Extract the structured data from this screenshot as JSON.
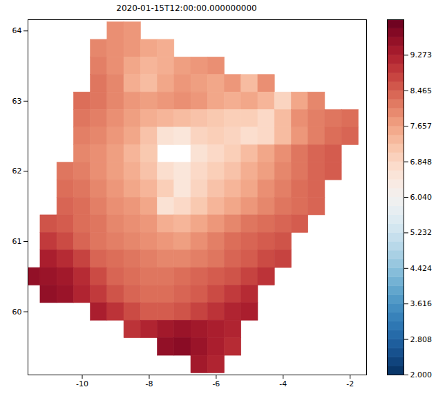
{
  "chart_data": {
    "type": "heatmap",
    "title": "2020-01-15T12:00:00.000000000",
    "x": [
      -11.5,
      -11.0,
      -10.5,
      -10.0,
      -9.5,
      -9.0,
      -8.5,
      -8.0,
      -7.5,
      -7.0,
      -6.5,
      -6.0,
      -5.5,
      -5.0,
      -4.5,
      -4.0,
      -3.5,
      -3.0,
      -2.5,
      -2.0,
      -1.5
    ],
    "y": [
      64.0,
      63.75,
      63.5,
      63.25,
      63.0,
      62.75,
      62.5,
      62.25,
      62.0,
      61.75,
      61.5,
      61.25,
      61.0,
      60.75,
      60.5,
      60.25,
      60.0,
      59.75,
      59.5,
      59.25
    ],
    "cells": [
      [
        null,
        null,
        null,
        null,
        null,
        7.9,
        7.8,
        null,
        null,
        null,
        null,
        null,
        null,
        null,
        null,
        null,
        null,
        null,
        null,
        null,
        null
      ],
      [
        null,
        null,
        null,
        null,
        8.0,
        7.9,
        7.8,
        7.6,
        7.5,
        null,
        null,
        null,
        null,
        null,
        null,
        null,
        null,
        null,
        null,
        null,
        null
      ],
      [
        null,
        null,
        null,
        null,
        8.1,
        7.9,
        7.6,
        7.4,
        7.5,
        7.7,
        7.8,
        7.9,
        null,
        null,
        null,
        null,
        null,
        null,
        null,
        null,
        null
      ],
      [
        null,
        null,
        null,
        null,
        8.2,
        8.0,
        7.5,
        7.3,
        7.6,
        7.8,
        7.7,
        7.6,
        7.8,
        7.3,
        7.9,
        null,
        null,
        null,
        null,
        null,
        null
      ],
      [
        null,
        null,
        null,
        8.3,
        8.2,
        8.0,
        7.8,
        7.7,
        7.8,
        7.9,
        7.8,
        7.6,
        7.5,
        7.6,
        7.4,
        6.9,
        7.6,
        8.0,
        null,
        null,
        null
      ],
      [
        null,
        null,
        null,
        8.2,
        8.1,
        7.9,
        7.7,
        7.5,
        7.4,
        7.3,
        7.2,
        7.1,
        7.0,
        7.0,
        6.8,
        7.3,
        7.9,
        8.1,
        8.2,
        8.3,
        null
      ],
      [
        null,
        null,
        null,
        8.1,
        8.0,
        7.8,
        7.6,
        7.2,
        6.6,
        6.5,
        6.9,
        7.0,
        6.9,
        6.7,
        6.8,
        7.3,
        7.8,
        8.1,
        8.3,
        8.4,
        null
      ],
      [
        null,
        null,
        null,
        8.0,
        7.9,
        7.7,
        7.4,
        7.1,
        null,
        null,
        6.6,
        6.8,
        7.0,
        7.3,
        7.6,
        7.9,
        8.2,
        8.4,
        8.5,
        null,
        null
      ],
      [
        null,
        null,
        8.2,
        8.1,
        7.9,
        7.7,
        7.5,
        7.2,
        6.7,
        6.5,
        6.8,
        7.0,
        7.2,
        7.5,
        7.7,
        8.0,
        8.2,
        8.4,
        8.5,
        null,
        null
      ],
      [
        null,
        null,
        8.3,
        8.2,
        8.0,
        7.8,
        7.6,
        7.4,
        7.0,
        6.5,
        6.9,
        7.2,
        7.4,
        7.6,
        7.9,
        8.1,
        8.3,
        8.4,
        null,
        null,
        null
      ],
      [
        null,
        null,
        8.4,
        8.3,
        8.1,
        7.9,
        7.8,
        7.6,
        6.6,
        6.8,
        7.1,
        7.4,
        7.6,
        7.8,
        8.0,
        8.2,
        8.3,
        8.4,
        null,
        null,
        null
      ],
      [
        null,
        8.6,
        8.5,
        8.3,
        8.2,
        8.0,
        7.9,
        7.8,
        7.5,
        7.4,
        7.6,
        7.8,
        8.0,
        8.2,
        8.3,
        8.4,
        8.5,
        null,
        null,
        null,
        null
      ],
      [
        null,
        8.9,
        8.7,
        8.4,
        8.2,
        8.1,
        8.0,
        7.9,
        7.8,
        7.7,
        7.9,
        8.1,
        8.3,
        8.4,
        8.5,
        8.6,
        null,
        null,
        null,
        null,
        null
      ],
      [
        null,
        9.3,
        9.1,
        8.8,
        8.4,
        8.3,
        8.2,
        8.1,
        8.0,
        8.0,
        8.1,
        8.2,
        8.4,
        8.5,
        8.7,
        8.8,
        null,
        null,
        null,
        null,
        null
      ],
      [
        9.6,
        9.5,
        9.4,
        9.1,
        8.7,
        8.4,
        8.3,
        8.2,
        8.2,
        8.3,
        8.4,
        8.5,
        8.6,
        8.8,
        9.0,
        null,
        null,
        null,
        null,
        null,
        null
      ],
      [
        null,
        9.6,
        9.5,
        9.2,
        8.9,
        8.6,
        8.4,
        8.3,
        8.3,
        8.4,
        8.5,
        8.7,
        8.9,
        9.1,
        null,
        null,
        null,
        null,
        null,
        null,
        null
      ],
      [
        null,
        null,
        null,
        null,
        9.3,
        9.0,
        8.7,
        8.5,
        8.5,
        8.6,
        8.8,
        9.0,
        9.2,
        9.3,
        null,
        null,
        null,
        null,
        null,
        null,
        null
      ],
      [
        null,
        null,
        null,
        null,
        null,
        null,
        9.0,
        9.2,
        9.4,
        9.5,
        9.4,
        9.3,
        9.2,
        null,
        null,
        null,
        null,
        null,
        null,
        null,
        null
      ],
      [
        null,
        null,
        null,
        null,
        null,
        null,
        null,
        null,
        9.6,
        9.7,
        9.5,
        9.3,
        9.1,
        null,
        null,
        null,
        null,
        null,
        null,
        null,
        null
      ],
      [
        null,
        null,
        null,
        null,
        null,
        null,
        null,
        null,
        null,
        null,
        9.4,
        9.2,
        null,
        null,
        null,
        null,
        null,
        null,
        null,
        null,
        null
      ]
    ],
    "xlim": [
      -11.62,
      -1.51
    ],
    "ylim": [
      59.1,
      64.16
    ],
    "xticks": [
      -10,
      -8,
      -6,
      -4,
      -2
    ],
    "yticks": [
      60,
      61,
      62,
      63,
      64
    ],
    "color": "RdBu_r",
    "colorbar_lim": [
      2,
      10.08
    ],
    "colorbar_ticks": [
      {
        "value": 2,
        "label": "2.000"
      },
      2.808,
      3.616,
      4.424,
      5.232,
      {
        "value": 6.04,
        "label": "6.040"
      },
      6.848,
      7.657,
      8.465,
      9.273
    ]
  }
}
